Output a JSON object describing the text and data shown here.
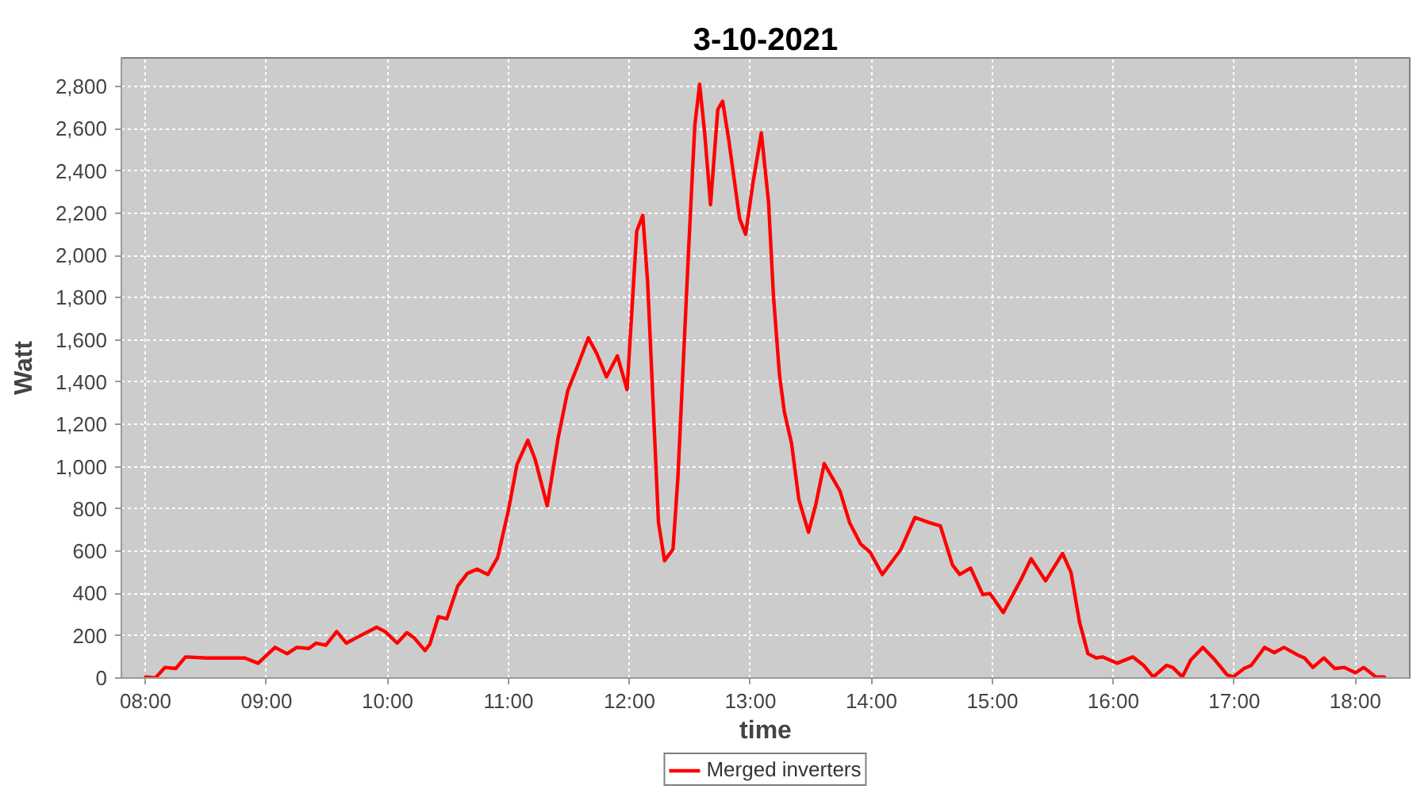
{
  "chart_data": {
    "type": "line",
    "title": "3-10-2021",
    "xlabel": "time",
    "ylabel": "Watt",
    "x": [
      8.0,
      8.08,
      8.16,
      8.25,
      8.33,
      8.5,
      8.67,
      8.82,
      8.93,
      9.07,
      9.17,
      9.25,
      9.35,
      9.41,
      9.49,
      9.58,
      9.66,
      9.74,
      9.91,
      9.98,
      10.08,
      10.16,
      10.22,
      10.31,
      10.35,
      10.42,
      10.49,
      10.58,
      10.66,
      10.74,
      10.83,
      10.91,
      11.0,
      11.07,
      11.16,
      11.22,
      11.32,
      11.41,
      11.49,
      11.57,
      11.66,
      11.73,
      11.81,
      11.9,
      11.98,
      12.06,
      12.11,
      12.15,
      12.24,
      12.29,
      12.36,
      12.4,
      12.49,
      12.54,
      12.58,
      12.62,
      12.67,
      12.73,
      12.77,
      12.82,
      12.91,
      12.96,
      13.02,
      13.09,
      13.15,
      13.19,
      13.24,
      13.28,
      13.34,
      13.4,
      13.48,
      13.54,
      13.61,
      13.74,
      13.82,
      13.91,
      13.99,
      14.09,
      14.24,
      14.36,
      14.48,
      14.57,
      14.67,
      14.73,
      14.82,
      14.92,
      14.98,
      15.09,
      15.24,
      15.32,
      15.44,
      15.58,
      15.65,
      15.72,
      15.79,
      15.86,
      15.91,
      16.03,
      16.16,
      16.25,
      16.33,
      16.44,
      16.49,
      16.57,
      16.64,
      16.74,
      16.84,
      16.94,
      16.99,
      17.08,
      17.14,
      17.25,
      17.33,
      17.41,
      17.52,
      17.58,
      17.65,
      17.74,
      17.83,
      17.91,
      18.0,
      18.07,
      18.17,
      18.24
    ],
    "series": [
      {
        "name": "Merged inverters",
        "color": "#ff0000",
        "values": [
          5,
          0,
          50,
          45,
          100,
          95,
          95,
          95,
          70,
          145,
          115,
          145,
          140,
          165,
          155,
          220,
          165,
          190,
          240,
          220,
          165,
          215,
          190,
          130,
          160,
          290,
          280,
          435,
          495,
          515,
          490,
          570,
          795,
          1010,
          1125,
          1035,
          815,
          1135,
          1360,
          1475,
          1610,
          1535,
          1425,
          1525,
          1365,
          2115,
          2190,
          1875,
          735,
          555,
          610,
          945,
          2040,
          2615,
          2810,
          2590,
          2240,
          2690,
          2730,
          2550,
          2175,
          2100,
          2340,
          2580,
          2250,
          1810,
          1435,
          1260,
          1110,
          845,
          690,
          820,
          1015,
          885,
          735,
          635,
          595,
          490,
          605,
          760,
          735,
          720,
          535,
          490,
          520,
          395,
          400,
          310,
          470,
          565,
          460,
          590,
          500,
          265,
          115,
          95,
          100,
          70,
          100,
          60,
          5,
          60,
          50,
          5,
          85,
          145,
          85,
          15,
          5,
          45,
          60,
          145,
          120,
          145,
          110,
          95,
          50,
          95,
          45,
          50,
          25,
          50,
          5,
          5
        ]
      }
    ],
    "xlim": [
      7.8,
      18.45
    ],
    "xticks": [
      {
        "value": 8,
        "label": "08:00"
      },
      {
        "value": 9,
        "label": "09:00"
      },
      {
        "value": 10,
        "label": "10:00"
      },
      {
        "value": 11,
        "label": "11:00"
      },
      {
        "value": 12,
        "label": "12:00"
      },
      {
        "value": 13,
        "label": "13:00"
      },
      {
        "value": 14,
        "label": "14:00"
      },
      {
        "value": 15,
        "label": "15:00"
      },
      {
        "value": 16,
        "label": "16:00"
      },
      {
        "value": 17,
        "label": "17:00"
      },
      {
        "value": 18,
        "label": "18:00"
      }
    ],
    "ylim": [
      0,
      2935
    ],
    "yticks": [
      0,
      200,
      400,
      600,
      800,
      {
        "value": 1000,
        "label": "1,000"
      },
      {
        "value": 1200,
        "label": "1,200"
      },
      {
        "value": 1400,
        "label": "1,400"
      },
      {
        "value": 1600,
        "label": "1,600"
      },
      {
        "value": 1800,
        "label": "1,800"
      },
      {
        "value": 2000,
        "label": "2,000"
      },
      {
        "value": 2200,
        "label": "2,200"
      },
      {
        "value": 2400,
        "label": "2,400"
      },
      {
        "value": 2600,
        "label": "2,600"
      },
      {
        "value": 2800,
        "label": "2,800"
      }
    ],
    "grid": true,
    "legend": "bottom",
    "line_style": "solid"
  }
}
